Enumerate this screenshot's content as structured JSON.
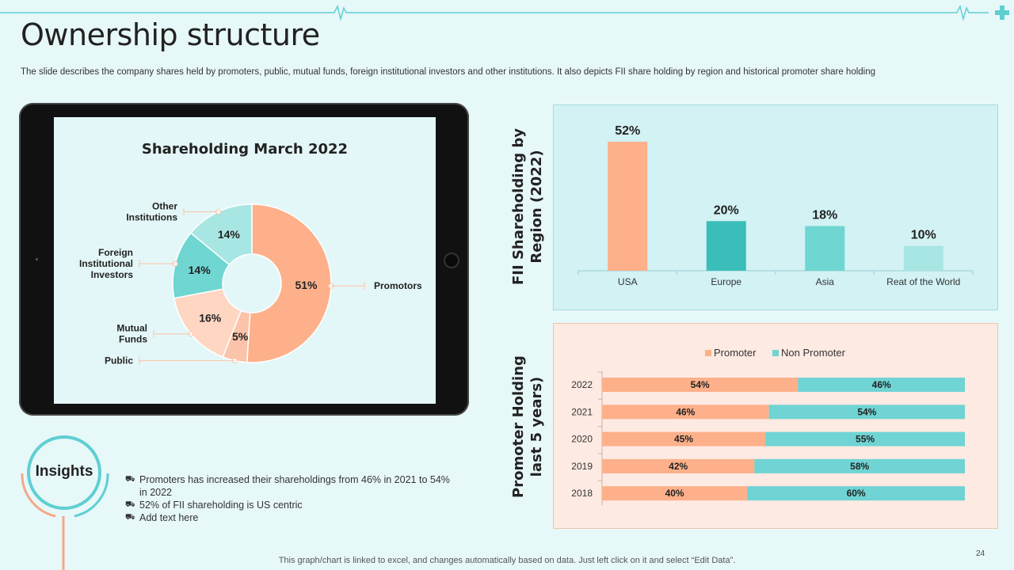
{
  "slide": {
    "title": "Ownership structure",
    "description": "The slide describes the company shares held by promoters, public, mutual funds, foreign institutional investors and other institutions. It also depicts FII share holding by region and historical promoter share holding",
    "footer": "This graph/chart is linked to excel,  and changes automatically based on data. Just left click on it and select “Edit Data”.",
    "page_number": "24"
  },
  "insights": {
    "heading": "Insights",
    "items": [
      "Promoters has increased their shareholdings from 46% in 2021 to 54% in 2022",
      "52% of FII shareholding is US centric",
      "Add text here"
    ]
  },
  "colors": {
    "promoter": "#fdb08a",
    "non_promoter": "#6fd4d3",
    "teal_dark": "#3bbdb9",
    "teal_mid": "#6fd6d2",
    "teal_light": "#a8e6e4",
    "peach_light": "#ffd6c2",
    "peach_mid": "#fbc3a9"
  },
  "chart_data": [
    {
      "type": "pie",
      "title": "Shareholding March 2022",
      "categories": [
        "Promotors",
        "Public",
        "Mutual Funds",
        "Foreign Institutional Investors",
        "Other Institutions"
      ],
      "values": [
        51,
        5,
        16,
        14,
        14
      ],
      "data_labels": [
        "51%",
        "5%",
        "16%",
        "14%",
        "14%"
      ],
      "label_lines": [
        [
          "Promotors"
        ],
        [
          "Public"
        ],
        [
          "Mutual",
          "Funds"
        ],
        [
          "Foreign",
          "Institutional",
          "Investors"
        ],
        [
          "Other",
          "Institutions"
        ]
      ]
    },
    {
      "type": "bar",
      "title": "FII Shareholding by Region (2022)",
      "title_lines": [
        "FII Shareholding by",
        "Region (2022)"
      ],
      "categories": [
        "USA",
        "Europe",
        "Asia",
        "Reat of the World"
      ],
      "values": [
        52,
        20,
        18,
        10
      ],
      "data_labels": [
        "52%",
        "20%",
        "18%",
        "10%"
      ],
      "ylim": [
        0,
        52
      ]
    },
    {
      "type": "bar",
      "orientation": "horizontal",
      "stacked": true,
      "title": "Promoter Holding last 5 years)",
      "title_lines": [
        "Promoter Holding",
        "last 5 years)"
      ],
      "categories": [
        "2022",
        "2021",
        "2020",
        "2019",
        "2018"
      ],
      "series": [
        {
          "name": "Promoter",
          "values": [
            54,
            46,
            45,
            42,
            40
          ],
          "labels": [
            "54%",
            "46%",
            "45%",
            "42%",
            "40%"
          ]
        },
        {
          "name": "Non Promoter",
          "values": [
            46,
            54,
            55,
            58,
            60
          ],
          "labels": [
            "46%",
            "54%",
            "55%",
            "58%",
            "60%"
          ]
        }
      ],
      "legend": "top"
    }
  ]
}
